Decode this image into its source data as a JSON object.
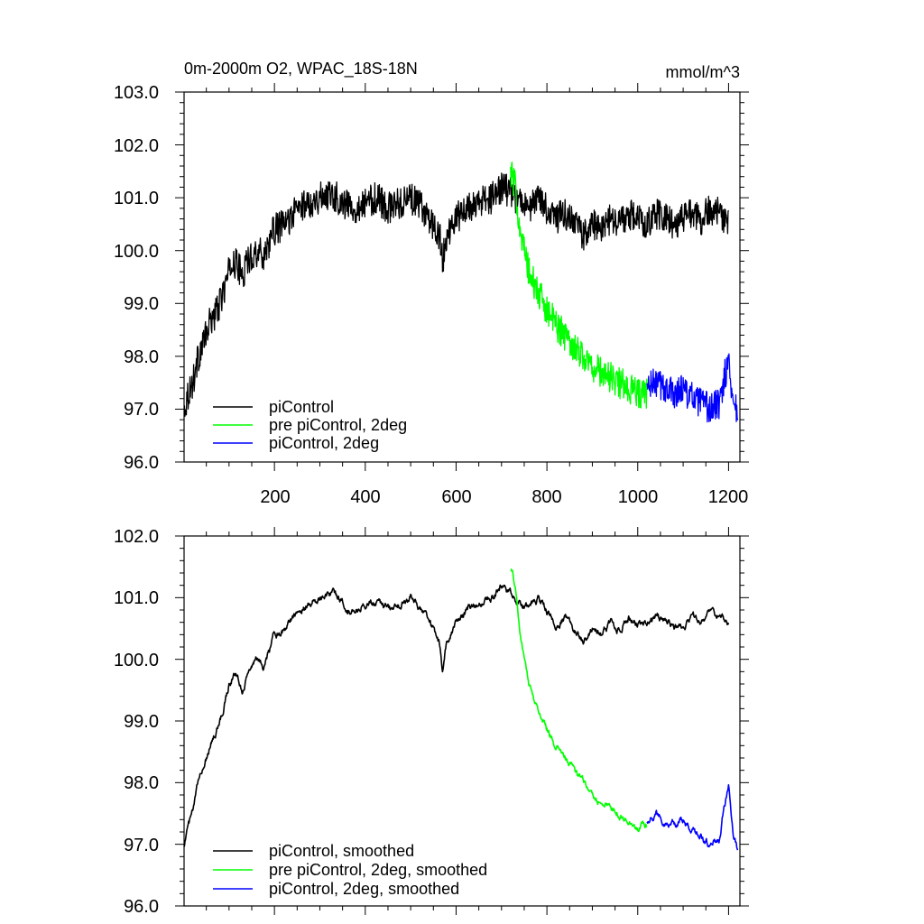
{
  "chart_data": [
    {
      "type": "line",
      "title": "0m-2000m O2, WPAC_18S-18N",
      "units": "mmol/m^3",
      "xlim": [
        1,
        1225
      ],
      "ylim": [
        96.0,
        103.0
      ],
      "xticks": [
        200,
        400,
        600,
        800,
        1000,
        1200
      ],
      "xtick_labels": [
        "200",
        "400",
        "600",
        "800",
        "1000",
        "1200"
      ],
      "yticks": [
        96.0,
        97.0,
        98.0,
        99.0,
        100.0,
        101.0,
        102.0,
        103.0
      ],
      "ytick_labels": [
        "96.0",
        "97.0",
        "98.0",
        "99.0",
        "100.0",
        "101.0",
        "102.0",
        "103.0"
      ],
      "legend_position": "bottom-left",
      "series": [
        {
          "name": "piControl",
          "color": "#000000",
          "x": [
            1,
            10,
            20,
            30,
            40,
            50,
            60,
            70,
            80,
            90,
            100,
            110,
            120,
            130,
            140,
            150,
            160,
            175,
            200,
            225,
            250,
            275,
            300,
            325,
            350,
            375,
            400,
            425,
            450,
            475,
            500,
            525,
            550,
            565,
            570,
            580,
            600,
            625,
            650,
            680,
            700,
            720,
            740,
            760,
            780,
            800,
            820,
            840,
            860,
            880,
            900,
            920,
            940,
            960,
            980,
            1000,
            1020,
            1040,
            1060,
            1080,
            1100,
            1120,
            1140,
            1160,
            1180,
            1200
          ],
          "y": [
            97.0,
            97.3,
            97.5,
            97.9,
            98.2,
            98.4,
            98.7,
            98.8,
            99.0,
            99.3,
            99.6,
            99.8,
            99.7,
            99.5,
            99.8,
            99.9,
            100.0,
            99.9,
            100.4,
            100.5,
            100.8,
            100.9,
            101.0,
            101.1,
            100.9,
            100.8,
            100.9,
            101.0,
            100.8,
            100.9,
            101.0,
            100.8,
            100.5,
            100.2,
            99.8,
            100.3,
            100.6,
            100.8,
            100.9,
            101.0,
            101.2,
            101.1,
            100.9,
            100.8,
            101.0,
            100.8,
            100.6,
            100.7,
            100.5,
            100.3,
            100.5,
            100.4,
            100.6,
            100.5,
            100.7,
            100.6,
            100.5,
            100.7,
            100.6,
            100.5,
            100.6,
            100.7,
            100.6,
            100.8,
            100.7,
            100.5
          ],
          "noise": 0.3
        },
        {
          "name": "pre piControl, 2deg",
          "color": "#00ff00",
          "x": [
            720,
            730,
            740,
            750,
            760,
            780,
            800,
            820,
            840,
            860,
            880,
            900,
            920,
            940,
            960,
            980,
            1000,
            1020
          ],
          "y": [
            101.5,
            101.2,
            100.5,
            100.0,
            99.6,
            99.2,
            98.9,
            98.6,
            98.4,
            98.2,
            98.0,
            97.8,
            97.7,
            97.6,
            97.5,
            97.4,
            97.3,
            97.3
          ],
          "noise": 0.3
        },
        {
          "name": "piControl, 2deg",
          "color": "#0000ff",
          "x": [
            1020,
            1040,
            1060,
            1080,
            1100,
            1120,
            1140,
            1160,
            1180,
            1190,
            1200,
            1210,
            1220
          ],
          "y": [
            97.4,
            97.5,
            97.4,
            97.3,
            97.4,
            97.2,
            97.1,
            97.0,
            97.1,
            97.6,
            97.9,
            97.2,
            96.9
          ],
          "noise": 0.3
        }
      ]
    },
    {
      "type": "line",
      "xlim": [
        1,
        1225
      ],
      "ylim": [
        96.0,
        102.0
      ],
      "xticks": [
        200,
        400,
        600,
        800,
        1000,
        1200
      ],
      "yticks": [
        96.0,
        97.0,
        98.0,
        99.0,
        100.0,
        101.0,
        102.0
      ],
      "ytick_labels": [
        "96.0",
        "97.0",
        "98.0",
        "99.0",
        "100.0",
        "101.0",
        "102.0"
      ],
      "legend_position": "bottom-left",
      "series": [
        {
          "name": "piControl, smoothed",
          "color": "#000000",
          "x": [
            1,
            10,
            20,
            30,
            40,
            50,
            60,
            70,
            80,
            90,
            100,
            110,
            120,
            130,
            140,
            150,
            160,
            175,
            200,
            225,
            250,
            275,
            300,
            325,
            350,
            375,
            400,
            425,
            450,
            475,
            500,
            525,
            550,
            565,
            570,
            580,
            600,
            625,
            650,
            680,
            700,
            720,
            740,
            760,
            780,
            800,
            820,
            840,
            860,
            880,
            900,
            920,
            940,
            960,
            980,
            1000,
            1020,
            1040,
            1060,
            1080,
            1100,
            1120,
            1140,
            1160,
            1180,
            1200
          ],
          "y": [
            97.0,
            97.3,
            97.5,
            97.9,
            98.2,
            98.4,
            98.7,
            98.8,
            99.0,
            99.3,
            99.6,
            99.8,
            99.7,
            99.5,
            99.8,
            99.9,
            100.0,
            99.9,
            100.4,
            100.5,
            100.8,
            100.9,
            101.0,
            101.1,
            100.9,
            100.8,
            100.9,
            101.0,
            100.8,
            100.9,
            101.0,
            100.8,
            100.5,
            100.2,
            99.8,
            100.3,
            100.6,
            100.8,
            100.9,
            101.0,
            101.2,
            101.1,
            100.9,
            100.8,
            101.0,
            100.8,
            100.6,
            100.7,
            100.5,
            100.3,
            100.5,
            100.4,
            100.6,
            100.5,
            100.7,
            100.6,
            100.5,
            100.7,
            100.6,
            100.5,
            100.6,
            100.7,
            100.6,
            100.8,
            100.7,
            100.5
          ],
          "noise": 0.12
        },
        {
          "name": "pre piControl, 2deg, smoothed",
          "color": "#00ff00",
          "x": [
            720,
            730,
            740,
            750,
            760,
            780,
            800,
            820,
            840,
            860,
            880,
            900,
            920,
            940,
            960,
            980,
            1000,
            1020
          ],
          "y": [
            101.5,
            101.2,
            100.5,
            100.0,
            99.6,
            99.2,
            98.9,
            98.6,
            98.4,
            98.2,
            98.0,
            97.8,
            97.7,
            97.6,
            97.5,
            97.4,
            97.3,
            97.3
          ],
          "noise": 0.12
        },
        {
          "name": "piControl, 2deg, smoothed",
          "color": "#0000ff",
          "x": [
            1020,
            1040,
            1060,
            1080,
            1100,
            1120,
            1140,
            1160,
            1180,
            1190,
            1200,
            1210,
            1220
          ],
          "y": [
            97.4,
            97.5,
            97.4,
            97.3,
            97.4,
            97.2,
            97.1,
            97.0,
            97.1,
            97.6,
            97.9,
            97.2,
            96.9
          ],
          "noise": 0.12
        }
      ]
    }
  ]
}
